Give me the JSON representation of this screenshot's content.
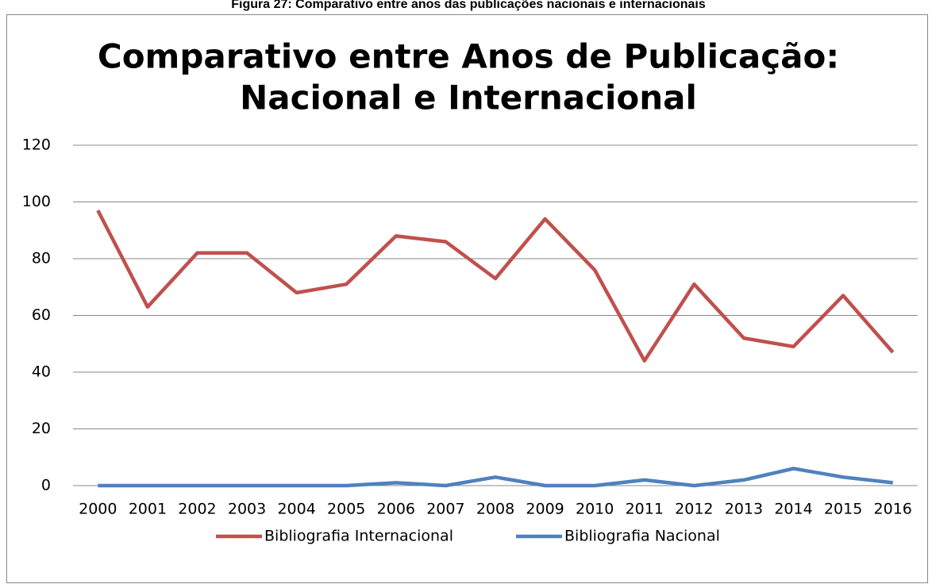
{
  "caption": "Figura 27: Comparativo entre anos das publicações nacionais e internacionais",
  "chart_data": {
    "type": "line",
    "title": [
      "Comparativo entre Anos de Publicação:",
      "Nacional e Internacional"
    ],
    "categories": [
      "2000",
      "2001",
      "2002",
      "2003",
      "2004",
      "2005",
      "2006",
      "2007",
      "2008",
      "2009",
      "2010",
      "2011",
      "2012",
      "2013",
      "2014",
      "2015",
      "2016"
    ],
    "series": [
      {
        "name": "Bibliografia Internacional",
        "color": "#c0504d",
        "values": [
          97,
          63,
          82,
          82,
          68,
          71,
          88,
          86,
          73,
          94,
          76,
          44,
          71,
          52,
          49,
          67,
          47
        ]
      },
      {
        "name": "Bibliografia Nacional",
        "color": "#4f81bd",
        "values": [
          0,
          0,
          0,
          0,
          0,
          0,
          1,
          0,
          3,
          0,
          0,
          2,
          0,
          2,
          6,
          3,
          1
        ]
      }
    ],
    "ylim": [
      0,
      120
    ],
    "yticks": [
      0,
      20,
      40,
      60,
      80,
      100,
      120
    ],
    "grid": true,
    "legend": "bottom"
  }
}
